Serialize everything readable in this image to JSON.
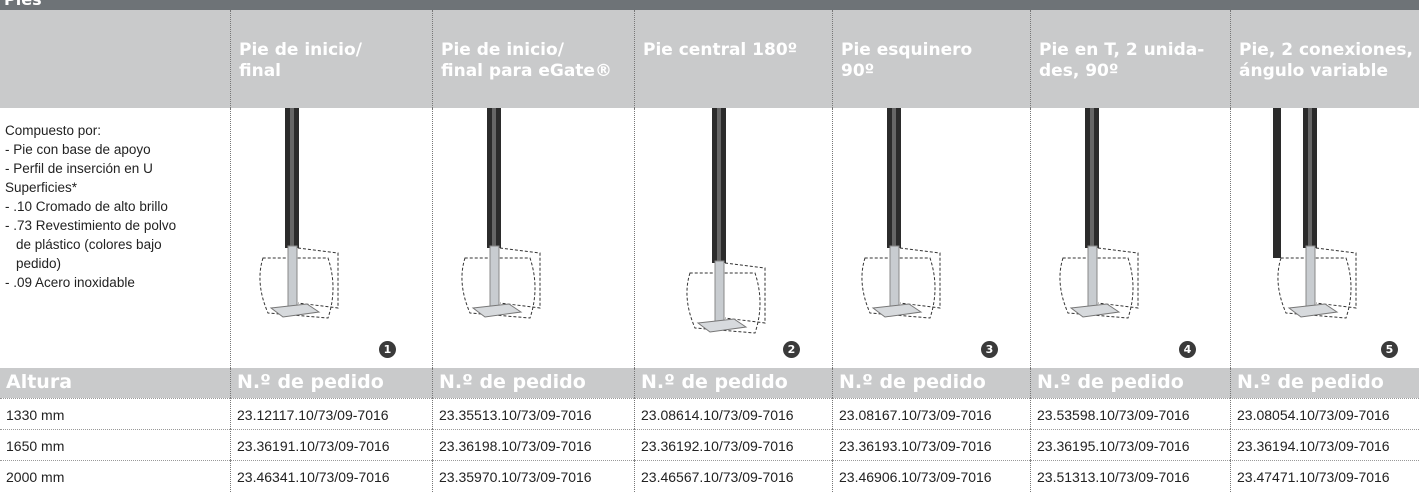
{
  "header": {
    "title": "Pies"
  },
  "table": {
    "columns": [
      {
        "title_lines": [
          "Pie de inicio/",
          "final"
        ],
        "marker": "1"
      },
      {
        "title_lines": [
          "Pie de inicio/",
          "final para eGate®"
        ]
      },
      {
        "title_lines": [
          "Pie central 180º"
        ],
        "marker": "2"
      },
      {
        "title_lines": [
          "Pie esquinero",
          "90º"
        ],
        "marker": "3"
      },
      {
        "title_lines": [
          "Pie en T, 2 unida-",
          "des, 90º"
        ],
        "marker": "4"
      },
      {
        "title_lines": [
          "Pie, 2 conexiones,",
          "ángulo variable"
        ],
        "marker": "5"
      }
    ],
    "description": [
      "Compuesto por:",
      "- Pie con base de apoyo",
      "- Perfil de inserción en U",
      "Superficies*",
      "- .10 Cromado de alto brillo",
      "- .73 Revestimiento de polvo",
      "de plástico (colores bajo",
      "pedido)",
      "- .09 Acero inoxidable"
    ],
    "subheader": [
      "Altura",
      "N.º de pedido",
      "N.º de pedido",
      "N.º de pedido",
      "N.º de pedido",
      "N.º de pedido",
      "N.º de pedido"
    ],
    "rows": [
      [
        "1330 mm",
        "23.12117.10/73/09-7016",
        "23.35513.10/73/09-7016",
        "23.08614.10/73/09-7016",
        "23.08167.10/73/09-7016",
        "23.53598.10/73/09-7016",
        "23.08054.10/73/09-7016"
      ],
      [
        "1650 mm",
        "23.36191.10/73/09-7016",
        "23.36198.10/73/09-7016",
        "23.36192.10/73/09-7016",
        "23.36193.10/73/09-7016",
        "23.36195.10/73/09-7016",
        "23.36194.10/73/09-7016"
      ],
      [
        "2000 mm",
        "23.46341.10/73/09-7016",
        "23.35970.10/73/09-7016",
        "23.46567.10/73/09-7016",
        "23.46906.10/73/09-7016",
        "23.51313.10/73/09-7016",
        "23.47471.10/73/09-7016"
      ]
    ]
  }
}
